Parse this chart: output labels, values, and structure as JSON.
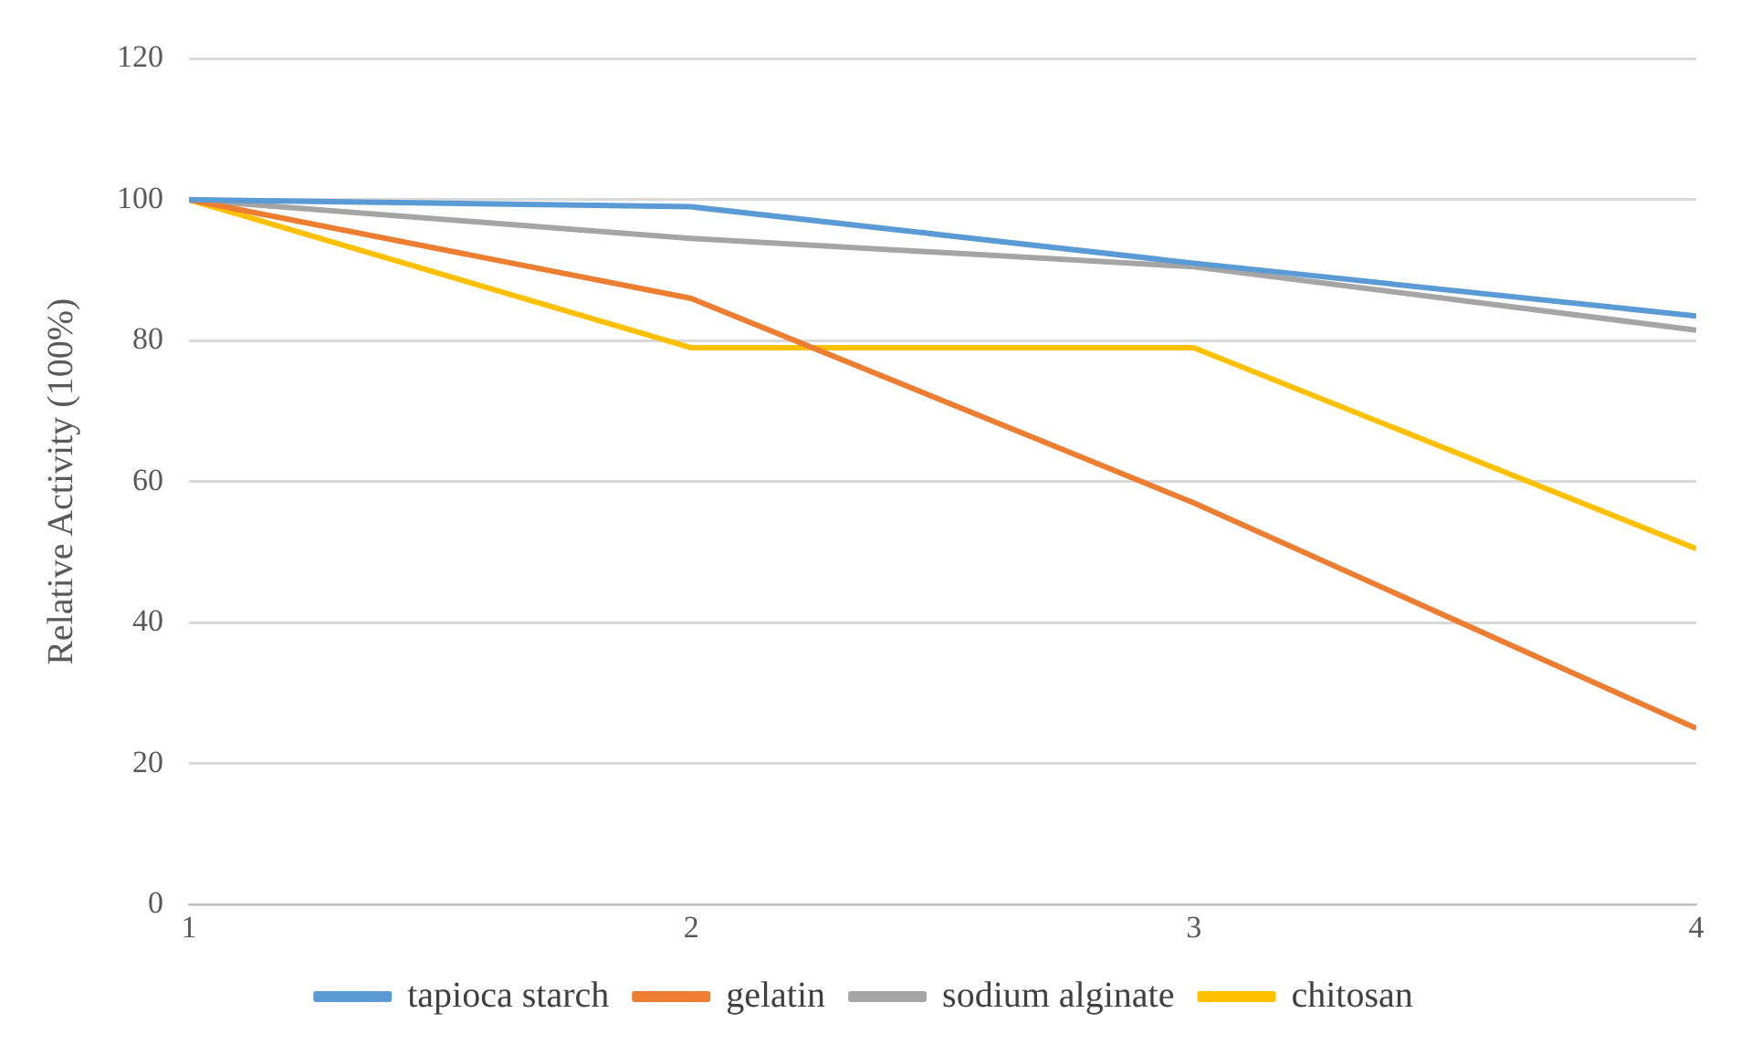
{
  "chart_data": {
    "type": "line",
    "ylabel": "Relative Activity (100%)",
    "x": [
      1,
      2,
      3,
      4
    ],
    "xlim": [
      1,
      4
    ],
    "xticks": [
      1,
      2,
      3,
      4
    ],
    "ylim": [
      0,
      120
    ],
    "yticks": [
      0,
      20,
      40,
      60,
      80,
      100,
      120
    ],
    "grid": "y",
    "legend": "bottom",
    "marker": "none",
    "series": [
      {
        "name": "tapioca starch",
        "color": "#5b9bd5",
        "values": [
          100,
          99,
          91,
          83.5
        ]
      },
      {
        "name": "gelatin",
        "color": "#ed7d31",
        "values": [
          100,
          86,
          57,
          25
        ]
      },
      {
        "name": "sodium alginate",
        "color": "#a5a5a5",
        "values": [
          100,
          94.5,
          90.5,
          81.5
        ]
      },
      {
        "name": "chitosan",
        "color": "#ffc000",
        "values": [
          100,
          79,
          79,
          50.5
        ]
      }
    ]
  }
}
